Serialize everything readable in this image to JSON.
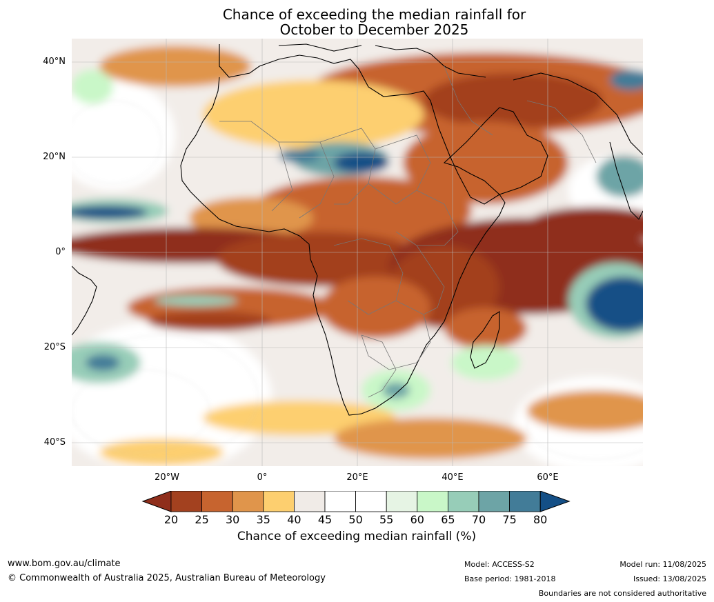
{
  "title": {
    "line1": "Chance of exceeding the median rainfall for",
    "line2": "October to December 2025"
  },
  "axes": {
    "lat_labels": [
      "40°N",
      "20°N",
      "0°",
      "20°S",
      "40°S"
    ],
    "lon_labels": [
      "20°W",
      "0°",
      "20°E",
      "40°E",
      "60°E"
    ]
  },
  "colorbar": {
    "label": "Chance of exceeding median rainfall (%)",
    "ticks": [
      "20",
      "25",
      "30",
      "35",
      "40",
      "45",
      "50",
      "55",
      "60",
      "65",
      "70",
      "75",
      "80"
    ],
    "colors": [
      "#8f2e1b",
      "#a3411f",
      "#c7642f",
      "#e0954b",
      "#fdcf6f",
      "#f0ebe7",
      "#ffffff",
      "#ffffff",
      "#e6f4e4",
      "#c9f7c8",
      "#97cdb8",
      "#6da4a6",
      "#427c98",
      "#144f86"
    ]
  },
  "footer": {
    "website": "www.bom.gov.au/climate",
    "copyright": "© Commonwealth of Australia 2025, Australian Bureau of Meteorology",
    "model": "Model: ACCESS-S2",
    "base_period": "Base period: 1981-2018",
    "model_run": "Model run: 11/08/2025",
    "issued": "Issued: 13/08/2025",
    "disclaimer": "Boundaries are not considered authoritative"
  }
}
